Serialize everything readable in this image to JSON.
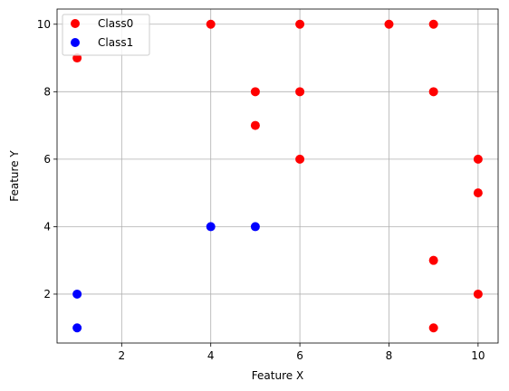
{
  "chart_data": {
    "type": "scatter",
    "title": "",
    "xlabel": "Feature X",
    "ylabel": "Feature Y",
    "xlim": [
      0.55,
      10.45
    ],
    "ylim": [
      0.55,
      10.45
    ],
    "xticks": [
      2,
      4,
      6,
      8,
      10
    ],
    "yticks": [
      2,
      4,
      6,
      8,
      10
    ],
    "xtick_labels": [
      "2",
      "4",
      "6",
      "8",
      "10"
    ],
    "ytick_labels": [
      "2",
      "4",
      "6",
      "8",
      "10"
    ],
    "grid": true,
    "legend": {
      "placement": "top-left"
    },
    "series": [
      {
        "name": "Class0",
        "color": "#ff0000",
        "points": [
          [
            1,
            9
          ],
          [
            4,
            10
          ],
          [
            6,
            10
          ],
          [
            8,
            10
          ],
          [
            9,
            10
          ],
          [
            5,
            8
          ],
          [
            6,
            8
          ],
          [
            9,
            8
          ],
          [
            5,
            7
          ],
          [
            6,
            6
          ],
          [
            10,
            6
          ],
          [
            10,
            5
          ],
          [
            9,
            3
          ],
          [
            10,
            2
          ],
          [
            9,
            1
          ]
        ]
      },
      {
        "name": "Class1",
        "color": "#0000ff",
        "points": [
          [
            1,
            2
          ],
          [
            1,
            1
          ],
          [
            4,
            4
          ],
          [
            5,
            4
          ]
        ]
      }
    ]
  }
}
